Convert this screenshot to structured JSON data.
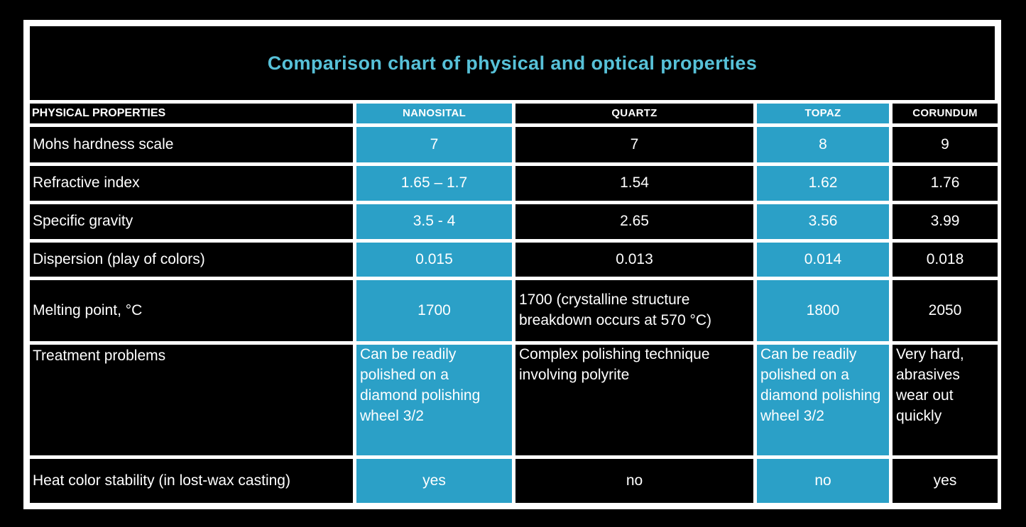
{
  "page": {
    "background_color": "#000000"
  },
  "colors": {
    "highlight_teal": "#2BA0C7",
    "title_cyan": "#57C1D8",
    "grid_white": "#FFFFFF",
    "cell_black": "#000000",
    "text_white": "#FFFFFF"
  },
  "chart_data": {
    "type": "table",
    "title": "Comparison chart of physical and optical properties",
    "corner_header": "PHYSICAL PROPERTIES",
    "column_headers": [
      "NANOSITAL",
      "QUARTZ",
      "TOPAZ",
      "CORUNDUM"
    ],
    "highlighted_columns": [
      "NANOSITAL",
      "TOPAZ"
    ],
    "rows": [
      {
        "property": "Mohs hardness scale",
        "values": [
          "7",
          "7",
          "8",
          "9"
        ]
      },
      {
        "property": "Refractive index",
        "values": [
          "1.65 – 1.7",
          "1.54",
          "1.62",
          "1.76"
        ]
      },
      {
        "property": "Specific gravity",
        "values": [
          "3.5 - 4",
          "2.65",
          "3.56",
          "3.99"
        ]
      },
      {
        "property": "Dispersion (play of colors)",
        "values": [
          "0.015",
          "0.013",
          "0.014",
          "0.018"
        ]
      },
      {
        "property": "Melting point, °C",
        "values": [
          "1700",
          "1700 (crystalline structure breakdown occurs at 570 °C)",
          "1800",
          "2050"
        ]
      },
      {
        "property": "Treatment problems",
        "values": [
          "Can be readily polished on a diamond polishing wheel 3/2",
          "Complex polishing technique involving polyrite",
          "Can be readily polished on a diamond polishing wheel 3/2",
          "Very hard, abrasives wear out quickly"
        ]
      },
      {
        "property": "Heat color stability (in lost-wax casting)",
        "values": [
          "yes",
          "no",
          "no",
          "yes"
        ]
      }
    ]
  }
}
